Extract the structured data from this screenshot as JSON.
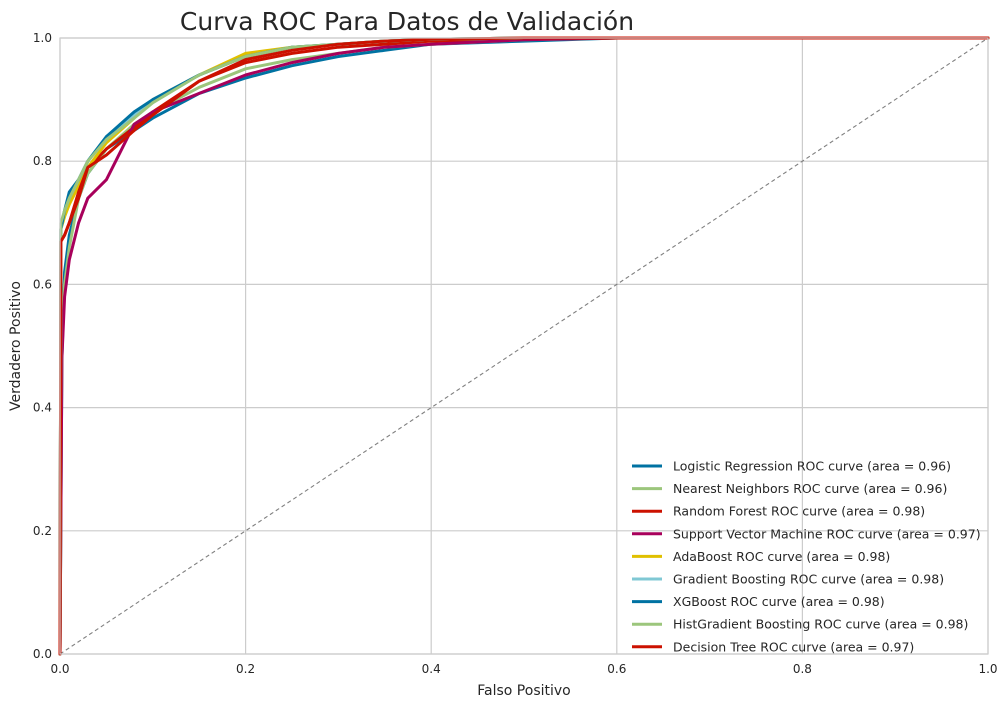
{
  "chart_data": {
    "type": "line",
    "title": "Curva ROC Para Datos de Validación",
    "xlabel": "Falso Positivo",
    "ylabel": "Verdadero Positivo",
    "xlim": [
      0,
      1
    ],
    "ylim": [
      0,
      1
    ],
    "grid": true,
    "legend_position": "lower-right",
    "x_ticks": [
      "0.0",
      "0.2",
      "0.4",
      "0.6",
      "0.8",
      "1.0"
    ],
    "y_ticks": [
      "0.0",
      "0.2",
      "0.4",
      "0.6",
      "0.8",
      "1.0"
    ],
    "diagonal": {
      "x": [
        0,
        1
      ],
      "y": [
        0,
        1
      ],
      "color": "#808080",
      "style": "dashed"
    },
    "series": [
      {
        "name": "Logistic Regression ROC curve (area = 0.96)",
        "color": "#0072a2",
        "x": [
          0,
          0.002,
          0.005,
          0.01,
          0.02,
          0.03,
          0.05,
          0.08,
          0.1,
          0.15,
          0.2,
          0.25,
          0.3,
          0.35,
          0.4,
          0.5,
          0.6,
          0.8,
          1.0
        ],
        "y": [
          0,
          0.48,
          0.62,
          0.68,
          0.74,
          0.78,
          0.82,
          0.85,
          0.87,
          0.91,
          0.935,
          0.955,
          0.97,
          0.98,
          0.99,
          0.995,
          1.0,
          1.0,
          1.0
        ]
      },
      {
        "name": "Nearest Neighbors ROC curve (area = 0.96)",
        "color": "#9cc67c",
        "x": [
          0,
          0.002,
          0.005,
          0.01,
          0.02,
          0.03,
          0.05,
          0.08,
          0.1,
          0.15,
          0.2,
          0.25,
          0.3,
          0.35,
          0.4,
          0.5,
          0.6,
          0.8,
          1.0
        ],
        "y": [
          0,
          0.52,
          0.6,
          0.66,
          0.74,
          0.78,
          0.82,
          0.86,
          0.88,
          0.92,
          0.95,
          0.965,
          0.975,
          0.985,
          0.99,
          0.997,
          1.0,
          1.0,
          1.0
        ]
      },
      {
        "name": "Random Forest ROC curve (area = 0.98)",
        "color": "#cc1100",
        "x": [
          0,
          0.001,
          0.005,
          0.01,
          0.02,
          0.03,
          0.05,
          0.08,
          0.1,
          0.15,
          0.2,
          0.25,
          0.3,
          0.35,
          0.4,
          0.5,
          0.6,
          0.8,
          1.0
        ],
        "y": [
          0,
          0.67,
          0.68,
          0.7,
          0.74,
          0.79,
          0.82,
          0.855,
          0.88,
          0.93,
          0.96,
          0.975,
          0.985,
          0.99,
          0.995,
          0.998,
          1.0,
          1.0,
          1.0
        ]
      },
      {
        "name": "Support Vector Machine ROC curve (area = 0.97)",
        "color": "#a8005b",
        "x": [
          0,
          0.002,
          0.005,
          0.01,
          0.02,
          0.03,
          0.05,
          0.06,
          0.08,
          0.1,
          0.15,
          0.2,
          0.25,
          0.3,
          0.35,
          0.4,
          0.5,
          0.6,
          0.8,
          1.0
        ],
        "y": [
          0,
          0.48,
          0.58,
          0.64,
          0.7,
          0.74,
          0.77,
          0.8,
          0.86,
          0.88,
          0.91,
          0.94,
          0.96,
          0.975,
          0.985,
          0.99,
          0.997,
          1.0,
          1.0,
          1.0
        ]
      },
      {
        "name": "AdaBoost ROC curve (area = 0.98)",
        "color": "#e0c000",
        "x": [
          0,
          0.001,
          0.005,
          0.01,
          0.02,
          0.03,
          0.05,
          0.08,
          0.1,
          0.15,
          0.2,
          0.25,
          0.3,
          0.35,
          0.4,
          0.5,
          0.6,
          0.8,
          1.0
        ],
        "y": [
          0,
          0.69,
          0.71,
          0.73,
          0.76,
          0.79,
          0.83,
          0.87,
          0.9,
          0.94,
          0.975,
          0.985,
          0.99,
          0.995,
          0.998,
          1.0,
          1.0,
          1.0,
          1.0
        ]
      },
      {
        "name": "Gradient Boosting ROC curve (area = 0.98)",
        "color": "#80c8d4",
        "x": [
          0,
          0.001,
          0.005,
          0.01,
          0.02,
          0.03,
          0.05,
          0.08,
          0.1,
          0.15,
          0.2,
          0.25,
          0.3,
          0.35,
          0.4,
          0.5,
          0.6,
          0.8,
          1.0
        ],
        "y": [
          0,
          0.69,
          0.72,
          0.74,
          0.77,
          0.8,
          0.84,
          0.875,
          0.9,
          0.94,
          0.97,
          0.985,
          0.99,
          0.995,
          0.998,
          1.0,
          1.0,
          1.0,
          1.0
        ]
      },
      {
        "name": "XGBoost ROC curve (area = 0.98)",
        "color": "#0072a2",
        "x": [
          0,
          0.001,
          0.005,
          0.01,
          0.02,
          0.03,
          0.04,
          0.05,
          0.08,
          0.1,
          0.15,
          0.2,
          0.25,
          0.3,
          0.35,
          0.4,
          0.5,
          0.6,
          0.8,
          1.0
        ],
        "y": [
          0,
          0.69,
          0.72,
          0.75,
          0.77,
          0.8,
          0.82,
          0.84,
          0.88,
          0.9,
          0.94,
          0.97,
          0.985,
          0.99,
          0.995,
          0.998,
          1.0,
          1.0,
          1.0,
          1.0
        ]
      },
      {
        "name": "HistGradient Boosting ROC curve (area = 0.98)",
        "color": "#9cc67c",
        "x": [
          0,
          0.001,
          0.005,
          0.01,
          0.02,
          0.03,
          0.05,
          0.08,
          0.1,
          0.15,
          0.2,
          0.25,
          0.3,
          0.35,
          0.4,
          0.5,
          0.6,
          0.8,
          1.0
        ],
        "y": [
          0,
          0.7,
          0.72,
          0.74,
          0.77,
          0.8,
          0.835,
          0.87,
          0.895,
          0.94,
          0.97,
          0.985,
          0.99,
          0.995,
          0.998,
          1.0,
          1.0,
          1.0,
          1.0
        ]
      },
      {
        "name": "Decision Tree ROC curve (area = 0.97)",
        "color": "#cc1100",
        "x": [
          0,
          0.001,
          0.005,
          0.01,
          0.02,
          0.03,
          0.05,
          0.08,
          0.1,
          0.15,
          0.2,
          0.25,
          0.3,
          0.35,
          0.4,
          0.5,
          0.6,
          0.8,
          1.0
        ],
        "y": [
          0,
          0.67,
          0.68,
          0.7,
          0.75,
          0.79,
          0.81,
          0.85,
          0.875,
          0.93,
          0.965,
          0.98,
          0.99,
          0.995,
          0.998,
          1.0,
          1.0,
          1.0,
          1.0
        ]
      }
    ]
  }
}
